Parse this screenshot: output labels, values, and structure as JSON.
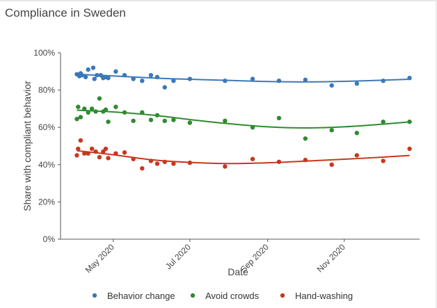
{
  "title": "Compliance in Sweden",
  "chart_data": {
    "type": "scatter",
    "title": "Compliance in Sweden",
    "xlabel": "Date",
    "ylabel": "Share with compliant behavior",
    "ylim": [
      0,
      100
    ],
    "xlim": [
      "2020-03-20",
      "2020-12-31"
    ],
    "grid": false,
    "legend_position": "bottom",
    "y_ticks": [
      "0%",
      "20%",
      "40%",
      "60%",
      "80%",
      "100%"
    ],
    "x_ticks": [
      "May 2020",
      "Jul 2020",
      "Sep 2020",
      "Nov 2020"
    ],
    "x_tick_dates": [
      "2020-05-01",
      "2020-07-01",
      "2020-09-01",
      "2020-11-01"
    ],
    "series": [
      {
        "name": "Behavior change",
        "color": "#3b78b9",
        "x": [
          "2020-04-02",
          "2020-04-04",
          "2020-04-05",
          "2020-04-06",
          "2020-04-09",
          "2020-04-11",
          "2020-04-15",
          "2020-04-16",
          "2020-04-18",
          "2020-04-21",
          "2020-04-23",
          "2020-04-25",
          "2020-04-27",
          "2020-05-03",
          "2020-05-10",
          "2020-05-17",
          "2020-05-24",
          "2020-05-31",
          "2020-06-05",
          "2020-06-11",
          "2020-06-18",
          "2020-07-01",
          "2020-07-29",
          "2020-08-20",
          "2020-09-10",
          "2020-10-01",
          "2020-10-22",
          "2020-11-11",
          "2020-12-02",
          "2020-12-23"
        ],
        "values": [
          88.5,
          87.5,
          89,
          88,
          87,
          91,
          92,
          86,
          88,
          88,
          86.5,
          87,
          86.5,
          90,
          88,
          86,
          85,
          88,
          87,
          81.5,
          85,
          86,
          85,
          86,
          85,
          85.5,
          82.5,
          83.5,
          85,
          86.5
        ],
        "trend": [
          [
            "2020-04-02",
            88.5
          ],
          [
            "2020-05-01",
            87.6
          ],
          [
            "2020-06-01",
            86.5
          ],
          [
            "2020-07-01",
            85.8
          ],
          [
            "2020-08-01",
            85.2
          ],
          [
            "2020-09-01",
            84.6
          ],
          [
            "2020-10-01",
            84.4
          ],
          [
            "2020-11-01",
            84.7
          ],
          [
            "2020-12-01",
            85.3
          ],
          [
            "2020-12-23",
            85.8
          ]
        ]
      },
      {
        "name": "Avoid crowds",
        "color": "#2e8b2e",
        "x": [
          "2020-04-02",
          "2020-04-03",
          "2020-04-05",
          "2020-04-08",
          "2020-04-11",
          "2020-04-14",
          "2020-04-17",
          "2020-04-20",
          "2020-04-23",
          "2020-04-25",
          "2020-04-27",
          "2020-05-03",
          "2020-05-10",
          "2020-05-17",
          "2020-05-24",
          "2020-05-31",
          "2020-06-05",
          "2020-06-11",
          "2020-06-18",
          "2020-07-01",
          "2020-07-29",
          "2020-08-20",
          "2020-09-10",
          "2020-10-01",
          "2020-10-22",
          "2020-11-11",
          "2020-12-02",
          "2020-12-23"
        ],
        "values": [
          64.5,
          71,
          65.5,
          70,
          68,
          70,
          68.5,
          75.5,
          68.5,
          69.5,
          63,
          71,
          68,
          63.5,
          68,
          64,
          66.5,
          63.5,
          64,
          62.5,
          63.5,
          60,
          65,
          54,
          58.5,
          57,
          63,
          63
        ],
        "trend": [
          [
            "2020-04-02",
            69.2
          ],
          [
            "2020-05-01",
            68.3
          ],
          [
            "2020-06-01",
            66.6
          ],
          [
            "2020-07-01",
            64.2
          ],
          [
            "2020-08-01",
            62.0
          ],
          [
            "2020-09-01",
            60.3
          ],
          [
            "2020-10-01",
            59.7
          ],
          [
            "2020-11-01",
            60.3
          ],
          [
            "2020-12-01",
            61.7
          ],
          [
            "2020-12-23",
            62.9
          ]
        ]
      },
      {
        "name": "Hand-washing",
        "color": "#c8371e",
        "x": [
          "2020-04-02",
          "2020-04-03",
          "2020-04-05",
          "2020-04-08",
          "2020-04-11",
          "2020-04-14",
          "2020-04-17",
          "2020-04-20",
          "2020-04-23",
          "2020-04-25",
          "2020-04-27",
          "2020-05-03",
          "2020-05-10",
          "2020-05-17",
          "2020-05-24",
          "2020-05-31",
          "2020-06-05",
          "2020-06-11",
          "2020-06-18",
          "2020-07-01",
          "2020-07-29",
          "2020-08-20",
          "2020-09-10",
          "2020-10-01",
          "2020-10-22",
          "2020-11-11",
          "2020-12-02",
          "2020-12-23"
        ],
        "values": [
          45,
          48.5,
          53,
          46,
          46,
          48.5,
          47,
          44,
          47,
          48.5,
          43.5,
          46,
          46.5,
          43,
          38,
          42,
          40.5,
          41.5,
          40.5,
          41,
          39,
          43,
          41.5,
          42.5,
          40,
          45,
          42,
          48.5
        ],
        "trend": [
          [
            "2020-04-02",
            47.5
          ],
          [
            "2020-05-01",
            45.3
          ],
          [
            "2020-06-01",
            42.6
          ],
          [
            "2020-07-01",
            41.2
          ],
          [
            "2020-08-01",
            40.6
          ],
          [
            "2020-09-01",
            41.0
          ],
          [
            "2020-10-01",
            41.9
          ],
          [
            "2020-11-01",
            42.9
          ],
          [
            "2020-12-01",
            44.0
          ],
          [
            "2020-12-23",
            44.9
          ]
        ]
      }
    ]
  }
}
